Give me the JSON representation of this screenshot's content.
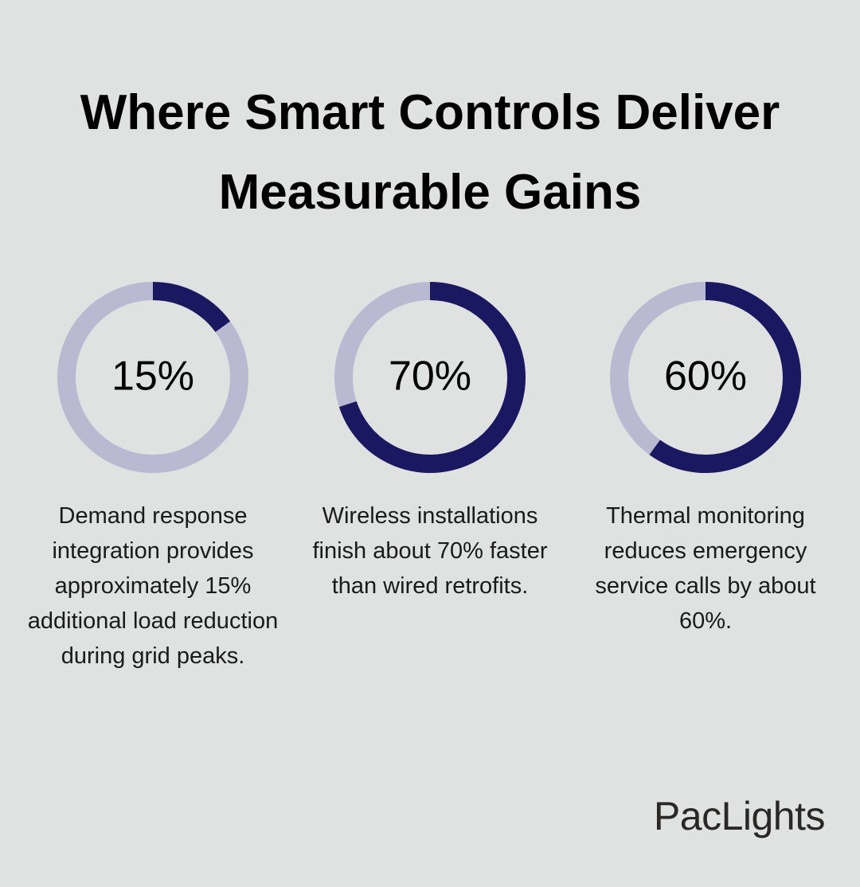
{
  "title": "Where Smart Controls Deliver Measurable Gains",
  "chart_data": [
    {
      "type": "donut",
      "values": [
        15
      ],
      "value_labels": [
        "15%"
      ],
      "max": 100,
      "color": "#1b1862",
      "track_color": "#b9bad2",
      "description": "Demand response integration provides approximately 15% additional load reduction during grid peaks."
    },
    {
      "type": "donut",
      "values": [
        70
      ],
      "value_labels": [
        "70%"
      ],
      "max": 100,
      "color": "#1b1862",
      "track_color": "#b9bad2",
      "description": "Wireless installations finish about 70% faster than wired retrofits."
    },
    {
      "type": "donut",
      "values": [
        60
      ],
      "value_labels": [
        "60%"
      ],
      "max": 100,
      "color": "#1b1862",
      "track_color": "#b9bad2",
      "description": "Thermal monitoring reduces emergency service calls by about 60%."
    }
  ],
  "brand": "PacLights"
}
